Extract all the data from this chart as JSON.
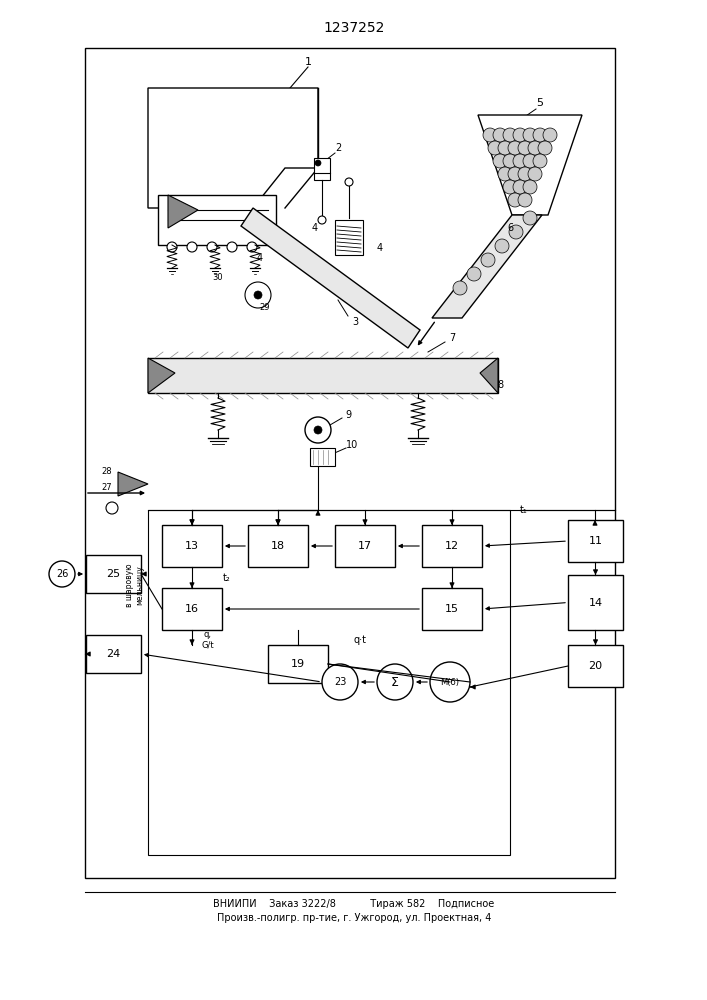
{
  "title": "1237252",
  "footer_line1": "ВНИИПИ    Заказ 3222/8           Тираж 582    Подписное",
  "footer_line2": "Произв.-полигр. пр-тие, г. Ужгород, ул. Проектная, 4",
  "bg": "#ffffff",
  "lc": "#000000",
  "gray": "#cccccc",
  "dgray": "#888888"
}
